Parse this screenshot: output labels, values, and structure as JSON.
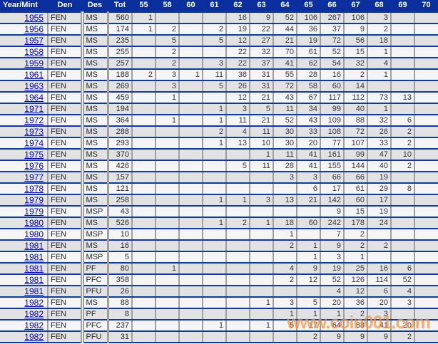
{
  "colors": {
    "header_bg": "#0b2f9e",
    "row_line": "#0d3aa6",
    "grid_line": "#a0a0a0",
    "row_odd": "#e2e2e2",
    "row_even": "#f5f5f5",
    "link": "#0000cc",
    "text": "#26262e",
    "count_text": "#3c3044",
    "watermark": "#f2953f"
  },
  "watermark": {
    "text": "www.coin001.com"
  },
  "table": {
    "columns": [
      "Year/Mint",
      "Den",
      "Des",
      "Tot",
      "55",
      "58",
      "60",
      "61",
      "62",
      "63",
      "64",
      "65",
      "66",
      "67",
      "68",
      "69",
      "70"
    ],
    "count_columns": [
      "55",
      "58",
      "60",
      "61",
      "62",
      "63",
      "64",
      "65",
      "66",
      "67",
      "68",
      "69",
      "70"
    ],
    "rows": [
      {
        "year": "1955",
        "den": "FEN",
        "des": "MS",
        "tot": "560",
        "counts": [
          "1",
          "",
          "",
          "",
          "16",
          "9",
          "52",
          "106",
          "267",
          "106",
          "3",
          "",
          ""
        ]
      },
      {
        "year": "1956",
        "den": "FEN",
        "des": "MS",
        "tot": "174",
        "counts": [
          "1",
          "2",
          "",
          "2",
          "19",
          "22",
          "44",
          "36",
          "37",
          "9",
          "2",
          "",
          ""
        ]
      },
      {
        "year": "1957",
        "den": "FEN",
        "des": "MS",
        "tot": "235",
        "counts": [
          "",
          "5",
          "",
          "5",
          "12",
          "27",
          "21",
          "19",
          "72",
          "56",
          "18",
          "",
          ""
        ]
      },
      {
        "year": "1958",
        "den": "FEN",
        "des": "MS",
        "tot": "255",
        "counts": [
          "",
          "2",
          "",
          "",
          "22",
          "32",
          "70",
          "61",
          "52",
          "15",
          "1",
          "",
          ""
        ]
      },
      {
        "year": "1959",
        "den": "FEN",
        "des": "MS",
        "tot": "257",
        "counts": [
          "",
          "2",
          "",
          "3",
          "22",
          "37",
          "41",
          "62",
          "54",
          "32",
          "4",
          "",
          ""
        ]
      },
      {
        "year": "1961",
        "den": "FEN",
        "des": "MS",
        "tot": "188",
        "counts": [
          "2",
          "3",
          "1",
          "11",
          "38",
          "31",
          "55",
          "28",
          "16",
          "2",
          "1",
          "",
          ""
        ]
      },
      {
        "year": "1963",
        "den": "FEN",
        "des": "MS",
        "tot": "269",
        "counts": [
          "",
          "3",
          "",
          "5",
          "26",
          "31",
          "72",
          "58",
          "60",
          "14",
          "",
          "",
          ""
        ]
      },
      {
        "year": "1964",
        "den": "FEN",
        "des": "MS",
        "tot": "459",
        "counts": [
          "",
          "1",
          "",
          "",
          "12",
          "21",
          "43",
          "67",
          "117",
          "112",
          "73",
          "13",
          ""
        ]
      },
      {
        "year": "1971",
        "den": "FEN",
        "des": "MS",
        "tot": "194",
        "counts": [
          "",
          "",
          "",
          "1",
          "3",
          "5",
          "11",
          "34",
          "99",
          "40",
          "1",
          "",
          ""
        ]
      },
      {
        "year": "1972",
        "den": "FEN",
        "des": "MS",
        "tot": "364",
        "counts": [
          "",
          "1",
          "",
          "1",
          "11",
          "21",
          "52",
          "43",
          "109",
          "88",
          "32",
          "6",
          ""
        ]
      },
      {
        "year": "1973",
        "den": "FEN",
        "des": "MS",
        "tot": "288",
        "counts": [
          "",
          "",
          "",
          "2",
          "4",
          "11",
          "30",
          "33",
          "108",
          "72",
          "26",
          "2",
          ""
        ]
      },
      {
        "year": "1974",
        "den": "FEN",
        "des": "MS",
        "tot": "293",
        "counts": [
          "",
          "",
          "",
          "1",
          "13",
          "10",
          "30",
          "20",
          "77",
          "107",
          "33",
          "2",
          ""
        ]
      },
      {
        "year": "1975",
        "den": "FEN",
        "des": "MS",
        "tot": "370",
        "counts": [
          "",
          "",
          "",
          "",
          "",
          "1",
          "11",
          "41",
          "161",
          "99",
          "47",
          "10",
          ""
        ]
      },
      {
        "year": "1976",
        "den": "FEN",
        "des": "MS",
        "tot": "426",
        "counts": [
          "",
          "",
          "",
          "",
          "5",
          "11",
          "28",
          "41",
          "155",
          "144",
          "40",
          "2",
          ""
        ]
      },
      {
        "year": "1977",
        "den": "FEN",
        "des": "MS",
        "tot": "157",
        "counts": [
          "",
          "",
          "",
          "",
          "",
          "",
          "3",
          "3",
          "66",
          "66",
          "19",
          "",
          ""
        ]
      },
      {
        "year": "1978",
        "den": "FEN",
        "des": "MS",
        "tot": "121",
        "counts": [
          "",
          "",
          "",
          "",
          "",
          "",
          "",
          "6",
          "17",
          "61",
          "29",
          "8",
          ""
        ]
      },
      {
        "year": "1979",
        "den": "FEN",
        "des": "MS",
        "tot": "258",
        "counts": [
          "",
          "",
          "",
          "1",
          "1",
          "3",
          "13",
          "21",
          "142",
          "60",
          "17",
          "",
          ""
        ]
      },
      {
        "year": "1979",
        "den": "FEN",
        "des": "MSP",
        "tot": "43",
        "counts": [
          "",
          "",
          "",
          "",
          "",
          "",
          "",
          "",
          "9",
          "15",
          "19",
          "",
          ""
        ]
      },
      {
        "year": "1980",
        "den": "FEN",
        "des": "MS",
        "tot": "526",
        "counts": [
          "",
          "",
          "",
          "1",
          "2",
          "1",
          "18",
          "60",
          "242",
          "178",
          "24",
          "",
          ""
        ]
      },
      {
        "year": "1980",
        "den": "FEN",
        "des": "MSP",
        "tot": "10",
        "counts": [
          "",
          "",
          "",
          "",
          "",
          "",
          "1",
          "",
          "7",
          "2",
          "",
          "",
          ""
        ]
      },
      {
        "year": "1981",
        "den": "FEN",
        "des": "MS",
        "tot": "16",
        "counts": [
          "",
          "",
          "",
          "",
          "",
          "",
          "2",
          "1",
          "9",
          "2",
          "2",
          "",
          ""
        ]
      },
      {
        "year": "1981",
        "den": "FEN",
        "des": "MSP",
        "tot": "5",
        "counts": [
          "",
          "",
          "",
          "",
          "",
          "",
          "",
          "1",
          "3",
          "1",
          "",
          "",
          ""
        ]
      },
      {
        "year": "1981",
        "den": "FEN",
        "des": "PF",
        "tot": "80",
        "counts": [
          "",
          "1",
          "",
          "",
          "",
          "",
          "4",
          "9",
          "19",
          "25",
          "16",
          "6",
          ""
        ]
      },
      {
        "year": "1981",
        "den": "FEN",
        "des": "PFC",
        "tot": "358",
        "counts": [
          "",
          "",
          "",
          "",
          "",
          "",
          "2",
          "12",
          "52",
          "126",
          "114",
          "52",
          ""
        ]
      },
      {
        "year": "1981",
        "den": "FEN",
        "des": "PFU",
        "tot": "26",
        "counts": [
          "",
          "",
          "",
          "",
          "",
          "",
          "",
          "",
          "4",
          "12",
          "6",
          "4",
          ""
        ]
      },
      {
        "year": "1982",
        "den": "FEN",
        "des": "MS",
        "tot": "88",
        "counts": [
          "",
          "",
          "",
          "",
          "",
          "1",
          "3",
          "5",
          "20",
          "36",
          "20",
          "3",
          ""
        ]
      },
      {
        "year": "1982",
        "den": "FEN",
        "des": "PF",
        "tot": "8",
        "counts": [
          "",
          "",
          "",
          "",
          "",
          "",
          "1",
          "1",
          "1",
          "2",
          "3",
          "",
          ""
        ]
      },
      {
        "year": "1982",
        "den": "FEN",
        "des": "PFC",
        "tot": "237",
        "counts": [
          "",
          "",
          "",
          "1",
          "",
          "1",
          "5",
          "17",
          "64",
          "88",
          "41",
          "20",
          ""
        ]
      },
      {
        "year": "1982",
        "den": "FEN",
        "des": "PFU",
        "tot": "31",
        "counts": [
          "",
          "",
          "",
          "",
          "",
          "",
          "",
          "2",
          "9",
          "9",
          "9",
          "2",
          ""
        ]
      }
    ]
  }
}
